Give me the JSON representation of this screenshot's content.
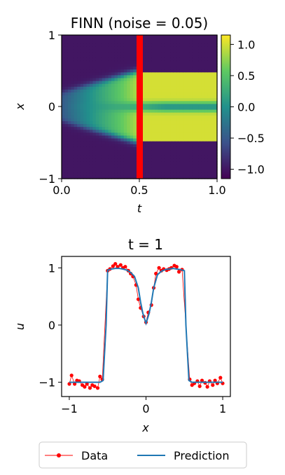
{
  "chart_data": [
    {
      "type": "heatmap",
      "title": "FINN (noise = 0.05)",
      "xlabel": "t",
      "ylabel": "x",
      "xlim": [
        0.0,
        1.0
      ],
      "ylim": [
        -1,
        1
      ],
      "x_ticks": [
        "0.0",
        "0.5",
        "1.0"
      ],
      "y_ticks": [
        "−1",
        "0",
        "1"
      ],
      "colormap": "viridis",
      "colorbar": {
        "range": [
          -1.15,
          1.15
        ],
        "ticks": [
          "1.0",
          "0.5",
          "0.0",
          "−0.5",
          "−1.0"
        ],
        "tick_values": [
          1.0,
          0.5,
          0.0,
          -0.5,
          -1.0
        ]
      },
      "marker_line": {
        "t": 0.5,
        "color": "#ff0000"
      },
      "description_values": {
        "background_value": -1.0,
        "plateau_value": 1.0,
        "inner_dip_value": 0.0,
        "plateau_half_width_x": 0.5
      }
    },
    {
      "type": "line",
      "title": "t = 1",
      "xlabel": "x",
      "ylabel": "u",
      "xlim": [
        -1.1,
        1.1
      ],
      "ylim": [
        -1.25,
        1.2
      ],
      "x_ticks": [
        "−1",
        "0",
        "1"
      ],
      "x_tick_values": [
        -1,
        0,
        1
      ],
      "y_ticks": [
        "1",
        "0",
        "−1"
      ],
      "y_tick_values": [
        1,
        0,
        -1
      ],
      "series": [
        {
          "name": "Prediction",
          "color": "#1f77b4",
          "x": [
            -1.0,
            -0.9,
            -0.8,
            -0.7,
            -0.6,
            -0.56,
            -0.52,
            -0.5,
            -0.45,
            -0.4,
            -0.35,
            -0.3,
            -0.25,
            -0.2,
            -0.15,
            -0.1,
            -0.07,
            -0.04,
            0.0,
            0.04,
            0.07,
            0.1,
            0.15,
            0.2,
            0.25,
            0.3,
            0.35,
            0.4,
            0.45,
            0.5,
            0.52,
            0.56,
            0.6,
            0.7,
            0.8,
            0.9,
            1.0
          ],
          "y": [
            -1.0,
            -1.0,
            -1.0,
            -1.0,
            -1.0,
            -0.97,
            0.0,
            0.96,
            0.98,
            0.99,
            0.99,
            0.98,
            0.96,
            0.92,
            0.85,
            0.65,
            0.4,
            0.2,
            0.03,
            0.2,
            0.4,
            0.65,
            0.88,
            0.94,
            0.97,
            0.98,
            0.99,
            0.98,
            0.97,
            0.95,
            0.0,
            -0.97,
            -1.0,
            -1.0,
            -1.0,
            -1.0,
            -1.0
          ]
        },
        {
          "name": "Data",
          "color": "#ff0000",
          "x": [
            -1.0,
            -0.97,
            -0.93,
            -0.9,
            -0.87,
            -0.83,
            -0.8,
            -0.77,
            -0.73,
            -0.7,
            -0.67,
            -0.63,
            -0.6,
            -0.57,
            -0.5,
            -0.47,
            -0.43,
            -0.4,
            -0.37,
            -0.33,
            -0.3,
            -0.27,
            -0.23,
            -0.2,
            -0.17,
            -0.13,
            -0.1,
            -0.07,
            -0.03,
            0.0,
            0.03,
            0.07,
            0.1,
            0.13,
            0.17,
            0.2,
            0.23,
            0.27,
            0.3,
            0.33,
            0.37,
            0.4,
            0.43,
            0.47,
            0.57,
            0.6,
            0.63,
            0.67,
            0.7,
            0.73,
            0.77,
            0.8,
            0.83,
            0.87,
            0.9,
            0.93,
            0.97,
            1.0
          ],
          "y": [
            -1.03,
            -0.88,
            -1.03,
            -0.97,
            -0.98,
            -1.05,
            -1.08,
            -1.03,
            -1.1,
            -1.05,
            -1.07,
            -1.1,
            -0.9,
            -0.95,
            0.95,
            0.98,
            1.03,
            1.07,
            1.02,
            1.05,
            1.0,
            1.02,
            0.95,
            0.9,
            0.85,
            0.7,
            0.45,
            0.3,
            0.15,
            0.05,
            0.22,
            0.35,
            0.65,
            0.9,
            1.0,
            0.95,
            0.98,
            0.96,
            0.98,
            1.0,
            1.04,
            1.02,
            0.93,
            0.97,
            -0.95,
            -1.05,
            -1.02,
            -0.98,
            -1.07,
            -0.97,
            -1.01,
            -1.08,
            -0.98,
            -1.05,
            -0.97,
            -1.02,
            -0.92,
            -1.02
          ]
        }
      ],
      "legend": {
        "placement": "bottom-center",
        "ncol": 2,
        "entries": [
          "Data",
          "Prediction"
        ]
      }
    }
  ]
}
